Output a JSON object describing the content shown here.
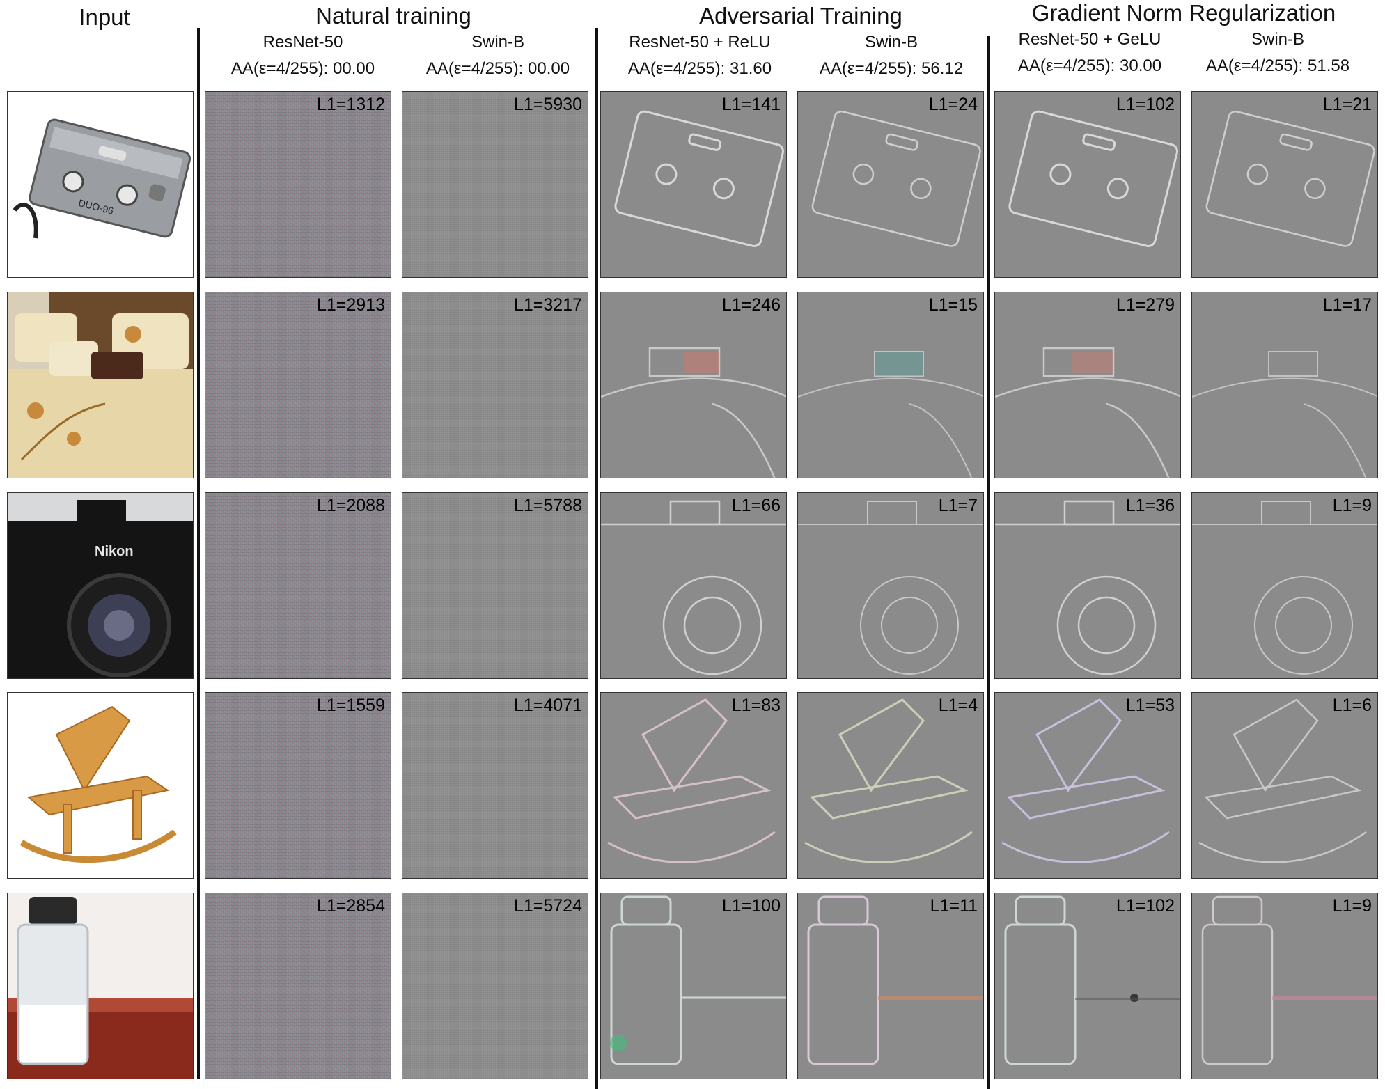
{
  "header": {
    "input_label": "Input",
    "groups": [
      {
        "title": "Natural training"
      },
      {
        "title": "Adversarial Training"
      },
      {
        "title": "Gradient Norm Regularization"
      }
    ],
    "columns": [
      {
        "model": "ResNet-50",
        "aa": "AA(ε=4/255): 00.00"
      },
      {
        "model": "Swin-B",
        "aa": "AA(ε=4/255): 00.00"
      },
      {
        "model": "ResNet-50 + ReLU",
        "aa": "AA(ε=4/255): 31.60"
      },
      {
        "model": "Swin-B",
        "aa": "AA(ε=4/255): 56.12"
      },
      {
        "model": "ResNet-50 + GeLU",
        "aa": "AA(ε=4/255): 30.00"
      },
      {
        "model": "Swin-B",
        "aa": "AA(ε=4/255): 51.58"
      }
    ]
  },
  "rows": [
    {
      "subject": "cassette-player",
      "l1": [
        "L1=1312",
        "L1=5930",
        "L1=141",
        "L1=24",
        "L1=102",
        "L1=21"
      ]
    },
    {
      "subject": "bed",
      "l1": [
        "L1=2913",
        "L1=3217",
        "L1=246",
        "L1=15",
        "L1=279",
        "L1=17"
      ]
    },
    {
      "subject": "nikon-camera",
      "camera_brand": "Nikon",
      "l1": [
        "L1=2088",
        "L1=5788",
        "L1=66",
        "L1=7",
        "L1=36",
        "L1=9"
      ]
    },
    {
      "subject": "rocking-chair",
      "l1": [
        "L1=1559",
        "L1=4071",
        "L1=83",
        "L1=4",
        "L1=53",
        "L1=6"
      ]
    },
    {
      "subject": "salt-shaker",
      "l1": [
        "L1=2854",
        "L1=5724",
        "L1=100",
        "L1=11",
        "L1=102",
        "L1=9"
      ]
    }
  ]
}
